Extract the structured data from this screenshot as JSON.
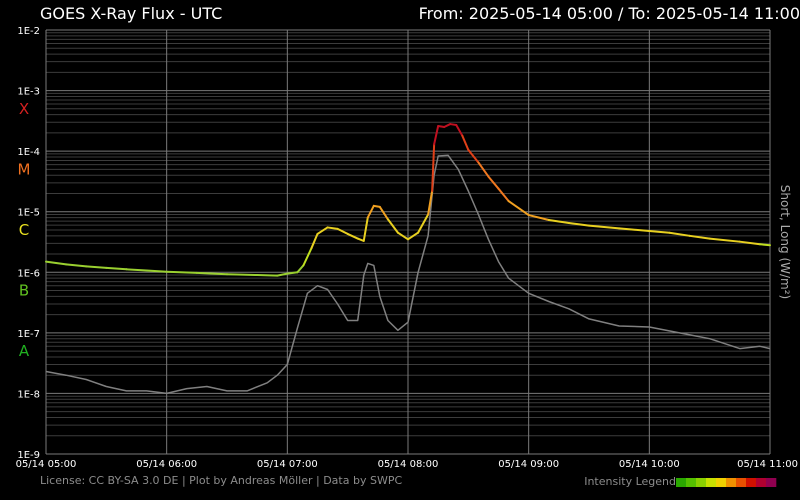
{
  "header": {
    "title": "GOES X-Ray Flux - UTC",
    "range_text": "From: 2025-05-14 05:00  /  To: 2025-05-14 11:00"
  },
  "footer": {
    "credits": "License: CC BY-SA 3.0 DE | Plot by Andreas Möller | Data by SWPC",
    "legend_label": "Intensity Legend",
    "legend_colors": [
      "#2aa800",
      "#55c000",
      "#8ad000",
      "#c8e000",
      "#f0d000",
      "#f09000",
      "#e85000",
      "#d01000",
      "#b00030",
      "#900050"
    ]
  },
  "chart_data": {
    "type": "line",
    "title": "GOES X-Ray Flux - UTC",
    "ylabel": "Short, Long (W/m²)",
    "yscale": "log",
    "ylim": [
      1e-09,
      0.01
    ],
    "xlim": [
      "05:00",
      "11:00"
    ],
    "y_tick_labels": [
      "1E-2",
      "1E-3",
      "1E-4",
      "1E-5",
      "1E-6",
      "1E-7",
      "1E-8",
      "1E-9"
    ],
    "x_tick_labels": [
      "05/14 05:00",
      "05/14 06:00",
      "05/14 07:00",
      "05/14 08:00",
      "05/14 09:00",
      "05/14 10:00",
      "05/14 11:00"
    ],
    "flare_classes": [
      {
        "label": "X",
        "color": "#d42020",
        "y": 0.0005
      },
      {
        "label": "M",
        "color": "#f07020",
        "y": 5e-05
      },
      {
        "label": "C",
        "color": "#e8e020",
        "y": 5e-06
      },
      {
        "label": "B",
        "color": "#60c020",
        "y": 5e-07
      },
      {
        "label": "A",
        "color": "#20b020",
        "y": 5e-08
      }
    ],
    "grid": true,
    "series": [
      {
        "color": "flux-class",
        "x": [
          "05:00",
          "05:10",
          "05:20",
          "05:30",
          "05:40",
          "05:50",
          "06:00",
          "06:15",
          "06:30",
          "06:45",
          "06:55",
          "07:00",
          "07:05",
          "07:08",
          "07:12",
          "07:15",
          "07:20",
          "07:25",
          "07:30",
          "07:35",
          "07:38",
          "07:40",
          "07:43",
          "07:46",
          "07:50",
          "07:55",
          "08:00",
          "08:05",
          "08:10",
          "08:12",
          "08:13",
          "08:15",
          "08:18",
          "08:21",
          "08:24",
          "08:27",
          "08:30",
          "08:35",
          "08:40",
          "08:45",
          "08:50",
          "09:00",
          "09:10",
          "09:20",
          "09:30",
          "09:45",
          "10:00",
          "10:10",
          "10:20",
          "10:30",
          "10:45",
          "10:55",
          "11:00"
        ],
        "y": [
          1.5e-06,
          1.35e-06,
          1.25e-06,
          1.18e-06,
          1.12e-06,
          1.07e-06,
          1.02e-06,
          9.8e-07,
          9.3e-07,
          9e-07,
          8.8e-07,
          9.5e-07,
          1e-06,
          1.3e-06,
          2.5e-06,
          4.3e-06,
          5.5e-06,
          5.2e-06,
          4.3e-06,
          3.6e-06,
          3.3e-06,
          8e-06,
          1.25e-05,
          1.2e-05,
          7.5e-06,
          4.5e-06,
          3.5e-06,
          4.5e-06,
          9e-06,
          2.2e-05,
          0.00013,
          0.00026,
          0.00025,
          0.00028,
          0.00027,
          0.00018,
          0.000105,
          6.5e-05,
          3.8e-05,
          2.4e-05,
          1.5e-05,
          8.8e-06,
          7.3e-06,
          6.5e-06,
          5.9e-06,
          5.3e-06,
          4.8e-06,
          4.5e-06,
          4e-06,
          3.6e-06,
          3.2e-06,
          2.9e-06,
          2.8e-06
        ]
      },
      {
        "color": "#808080",
        "x": [
          "05:00",
          "05:10",
          "05:20",
          "05:30",
          "05:40",
          "05:50",
          "06:00",
          "06:10",
          "06:20",
          "06:30",
          "06:40",
          "06:50",
          "06:55",
          "07:00",
          "07:05",
          "07:10",
          "07:15",
          "07:20",
          "07:25",
          "07:30",
          "07:35",
          "07:38",
          "07:40",
          "07:43",
          "07:46",
          "07:50",
          "07:55",
          "08:00",
          "08:05",
          "08:10",
          "08:13",
          "08:15",
          "08:20",
          "08:25",
          "08:30",
          "08:35",
          "08:40",
          "08:45",
          "08:50",
          "09:00",
          "09:10",
          "09:20",
          "09:30",
          "09:45",
          "10:00",
          "10:15",
          "10:30",
          "10:45",
          "10:55",
          "11:00"
        ],
        "y": [
          2.3e-08,
          2e-08,
          1.7e-08,
          1.3e-08,
          1.1e-08,
          1.1e-08,
          1e-08,
          1.2e-08,
          1.3e-08,
          1.1e-08,
          1.1e-08,
          1.5e-08,
          2e-08,
          3e-08,
          1.2e-07,
          4.5e-07,
          6e-07,
          5.2e-07,
          3e-07,
          1.6e-07,
          1.6e-07,
          9e-07,
          1.4e-06,
          1.3e-06,
          4e-07,
          1.6e-07,
          1.1e-07,
          1.5e-07,
          1e-06,
          4e-06,
          4e-05,
          8.3e-05,
          8.5e-05,
          5e-05,
          2.2e-05,
          9e-06,
          3.5e-06,
          1.5e-06,
          8e-07,
          4.5e-07,
          3.3e-07,
          2.5e-07,
          1.7e-07,
          1.3e-07,
          1.25e-07,
          1e-07,
          8e-08,
          5.5e-08,
          6e-08,
          5.5e-08
        ]
      }
    ]
  }
}
